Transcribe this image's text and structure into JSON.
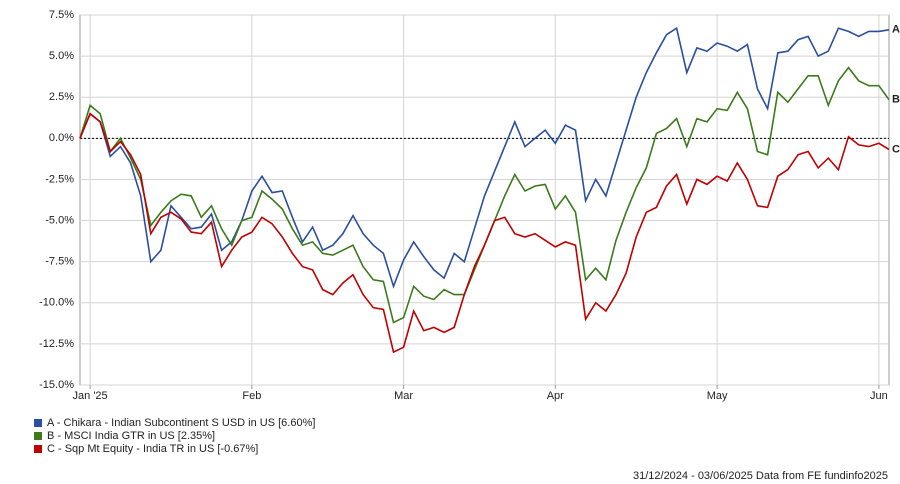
{
  "chart_data": {
    "type": "line",
    "categories": [
      null,
      "Jan '25",
      null,
      null,
      null,
      null,
      null,
      null,
      null,
      null,
      null,
      null,
      null,
      null,
      null,
      null,
      null,
      "Feb",
      null,
      null,
      null,
      null,
      null,
      null,
      null,
      null,
      null,
      null,
      null,
      null,
      null,
      null,
      "Mar",
      null,
      null,
      null,
      null,
      null,
      null,
      null,
      null,
      null,
      null,
      null,
      null,
      null,
      null,
      "Apr",
      null,
      null,
      null,
      null,
      null,
      null,
      null,
      null,
      null,
      null,
      null,
      null,
      null,
      null,
      null,
      "May",
      null,
      null,
      null,
      null,
      null,
      null,
      null,
      null,
      null,
      null,
      null,
      null,
      null,
      null,
      null,
      "Jun",
      null
    ],
    "series": [
      {
        "name": "A - Chikara - Indian Subcontinent S USD in US [6.60%]",
        "label": "A",
        "color": "#2a4fa0",
        "values": [
          0,
          1.5,
          1.0,
          -1.1,
          -0.5,
          -1.5,
          -3.5,
          -7.5,
          -6.8,
          -4.1,
          -4.8,
          -5.5,
          -5.4,
          -4.6,
          -6.8,
          -6.3,
          -5.0,
          -3.2,
          -2.3,
          -3.3,
          -3.2,
          -4.8,
          -6.3,
          -5.4,
          -6.8,
          -6.5,
          -5.8,
          -4.7,
          -5.8,
          -6.5,
          -7.0,
          -9.0,
          -7.4,
          -6.3,
          -7.2,
          -8.0,
          -8.5,
          -7.0,
          -7.5,
          -5.5,
          -3.5,
          -2.0,
          -0.5,
          1.0,
          -0.5,
          0.0,
          0.5,
          -0.3,
          0.8,
          0.5,
          -3.8,
          -2.5,
          -3.5,
          -1.5,
          0.5,
          2.5,
          4.0,
          5.2,
          6.3,
          6.7,
          4.0,
          5.5,
          5.3,
          5.8,
          5.6,
          5.3,
          5.7,
          3.0,
          1.8,
          5.2,
          5.3,
          6.0,
          6.2,
          5.0,
          5.3,
          6.7,
          6.5,
          6.2,
          6.5,
          6.5,
          6.6
        ]
      },
      {
        "name": "B - MSCI India GTR in US [2.35%]",
        "label": "B",
        "color": "#3d7a1c",
        "values": [
          0,
          2.0,
          1.5,
          -0.8,
          0,
          -1.2,
          -2.5,
          -5.3,
          -4.5,
          -3.8,
          -3.4,
          -3.5,
          -4.8,
          -4.1,
          -5.5,
          -6.5,
          -5.0,
          -4.8,
          -3.2,
          -3.7,
          -4.3,
          -5.5,
          -6.5,
          -6.3,
          -7.0,
          -7.1,
          -6.8,
          -6.5,
          -7.8,
          -8.6,
          -8.7,
          -11.2,
          -10.9,
          -9.0,
          -9.6,
          -9.8,
          -9.2,
          -9.5,
          -9.5,
          -8.0,
          -6.5,
          -5.0,
          -3.5,
          -2.2,
          -3.2,
          -2.9,
          -2.8,
          -4.3,
          -3.5,
          -4.5,
          -8.6,
          -7.9,
          -8.6,
          -6.2,
          -4.5,
          -3.0,
          -1.8,
          0.3,
          0.6,
          1.2,
          -0.5,
          1.2,
          1.0,
          1.8,
          1.7,
          2.8,
          1.8,
          -0.8,
          -1.0,
          2.8,
          2.2,
          3.0,
          3.8,
          3.8,
          2.0,
          3.5,
          4.3,
          3.5,
          3.2,
          3.2,
          2.35
        ]
      },
      {
        "name": "C - Sqp Mt Equity - India TR in US [-0.67%]",
        "label": "C",
        "color": "#c00000",
        "values": [
          0,
          1.5,
          1.0,
          -0.8,
          -0.2,
          -1.0,
          -2.2,
          -5.8,
          -4.8,
          -4.5,
          -4.9,
          -5.7,
          -5.8,
          -5.1,
          -7.8,
          -6.8,
          -6.0,
          -5.7,
          -4.8,
          -5.2,
          -6.0,
          -7.0,
          -7.8,
          -8.0,
          -9.2,
          -9.5,
          -8.8,
          -8.3,
          -9.5,
          -10.3,
          -10.4,
          -13.0,
          -12.7,
          -10.5,
          -11.7,
          -11.5,
          -11.8,
          -11.5,
          -9.5,
          -7.8,
          -6.5,
          -5.0,
          -4.8,
          -5.8,
          -6.0,
          -5.8,
          -6.2,
          -6.6,
          -6.3,
          -6.5,
          -11.0,
          -10.0,
          -10.5,
          -9.5,
          -8.2,
          -6.0,
          -4.5,
          -4.2,
          -2.9,
          -2.2,
          -4.0,
          -2.5,
          -2.8,
          -2.3,
          -2.6,
          -1.5,
          -2.5,
          -4.1,
          -4.2,
          -2.3,
          -1.9,
          -1.0,
          -0.8,
          -1.8,
          -1.2,
          -1.9,
          0.1,
          -0.4,
          -0.5,
          -0.3,
          -0.67
        ]
      }
    ],
    "ylim": [
      -15,
      7.5
    ],
    "yticks": [
      {
        "value": -15,
        "label": "-15.0%"
      },
      {
        "value": -12.5,
        "label": "-12.5%"
      },
      {
        "value": -10,
        "label": "-10.0%"
      },
      {
        "value": -7.5,
        "label": "-7.5%"
      },
      {
        "value": -5,
        "label": "-5.0%"
      },
      {
        "value": -2.5,
        "label": "-2.5%"
      },
      {
        "value": 0,
        "label": "0.0%"
      },
      {
        "value": 2.5,
        "label": "2.5%"
      },
      {
        "value": 5,
        "label": "5.0%"
      },
      {
        "value": 7.5,
        "label": "7.5%"
      }
    ],
    "grid": true,
    "zero_line": true,
    "source": "31/12/2024 - 03/06/2025 Data from FE fundinfo2025"
  }
}
